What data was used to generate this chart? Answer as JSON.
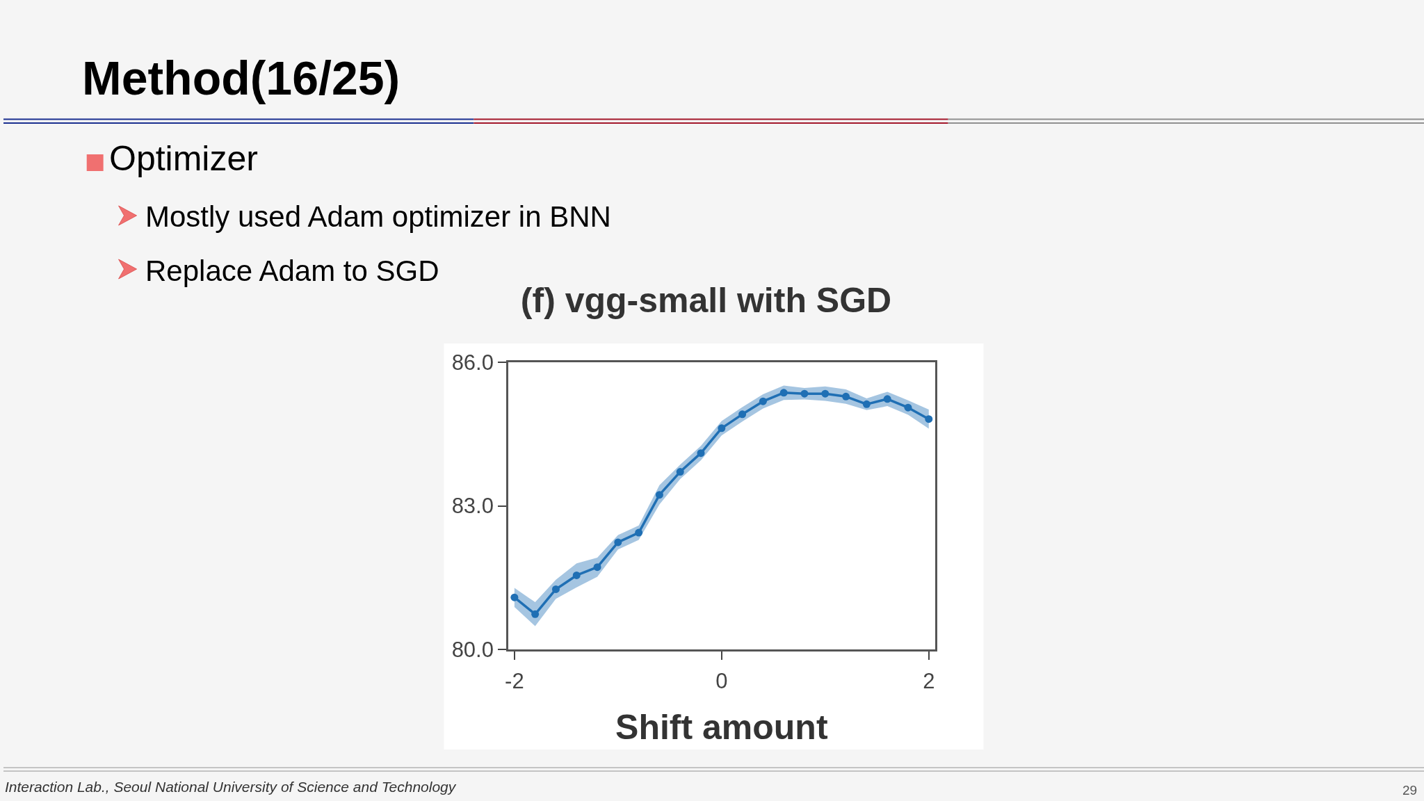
{
  "chart_data": {
    "type": "line",
    "title": "(f) vgg-small with SGD",
    "xlabel": "Shift amount",
    "x": [
      -2,
      -1.8,
      -1.6,
      -1.4,
      -1.2,
      -1,
      -0.8,
      -0.6,
      -0.4,
      -0.2,
      0,
      0.2,
      0.4,
      0.6,
      0.8,
      1,
      1.2,
      1.4,
      1.6,
      1.8,
      2
    ],
    "series": [
      {
        "color": "#1f6fb4",
        "values": [
          81.09,
          80.74,
          81.26,
          81.55,
          81.72,
          82.24,
          82.44,
          83.23,
          83.71,
          84.1,
          84.62,
          84.91,
          85.18,
          85.36,
          85.34,
          85.34,
          85.28,
          85.12,
          85.23,
          85.05,
          84.81
        ],
        "lower": [
          80.89,
          80.49,
          81.06,
          81.3,
          81.52,
          82.09,
          82.29,
          83.03,
          83.56,
          83.95,
          84.47,
          84.76,
          85.03,
          85.21,
          85.22,
          85.19,
          85.13,
          85.0,
          85.08,
          84.9,
          84.61
        ],
        "upper": [
          81.29,
          80.99,
          81.46,
          81.8,
          81.92,
          82.39,
          82.59,
          83.43,
          83.86,
          84.25,
          84.77,
          85.06,
          85.33,
          85.51,
          85.46,
          85.49,
          85.43,
          85.24,
          85.38,
          85.2,
          85.01
        ]
      }
    ],
    "xlim": [
      -2.06,
      2.06
    ],
    "xticks": [
      -2,
      0,
      2
    ],
    "ylim": [
      80,
      86
    ],
    "yticks": [
      {
        "value": 80,
        "label": "80.0"
      },
      {
        "value": 83,
        "label": "83.0"
      },
      {
        "value": 86,
        "label": "86.0"
      }
    ],
    "marker": "circle",
    "line_style": "solid",
    "annotations": [
      "Method(16/25)",
      "Optimizer",
      "Mostly used Adam optimizer in BNN",
      "Replace Adam to SGD",
      "Interaction Lab., Seoul National University of Science and Technology",
      "29"
    ]
  }
}
